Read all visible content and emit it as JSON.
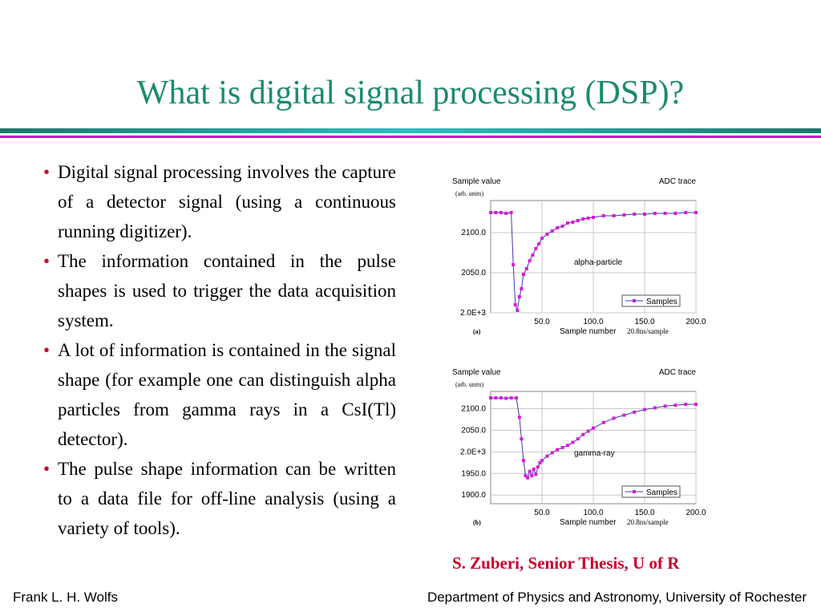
{
  "slide": {
    "title": "What is digital signal processing (DSP)?",
    "bullets": [
      "Digital signal processing involves the capture of a detector signal (using a continuous running digitizer).",
      "The information contained in the pulse shapes is used to trigger the data acquisition system.",
      "A lot of information is contained in the signal shape (for example one can distinguish alpha particles from gamma rays in a CsI(Tl) detector).",
      "The pulse shape information can be written to a data file for off-line analysis (using a variety of tools)."
    ],
    "bullet_symbol": "•",
    "citation": "S. Zuberi, Senior Thesis, U of R",
    "footer_left": "Frank L. H. Wolfs",
    "footer_right": "Department of Physics and Astronomy, University of Rochester",
    "colors": {
      "title": "#1a8b6e",
      "accent_red": "#c8002a",
      "bar_teal": "#1aa5a5",
      "bar_magenta": "#cc00cc",
      "trace": "#d81bd8"
    }
  },
  "chart_data": [
    {
      "type": "line",
      "title": "ADC trace",
      "ylabel": "Sample value",
      "ylabel_units": "(arb. units)",
      "xlabel": "Sample number",
      "x_units": "20.8ns/sample",
      "annotation": "alpha-particle",
      "panel_label": "(a)",
      "legend": "Samples",
      "legend_position": "bottom-right",
      "grid": true,
      "xlim": [
        0,
        200
      ],
      "ylim": [
        2000,
        2140
      ],
      "xticks": [
        "50.0",
        "100.0",
        "150.0",
        "200.0"
      ],
      "yticks": [
        {
          "value": 2000,
          "label": "2.0E+3"
        },
        {
          "value": 2050,
          "label": "2050.0"
        },
        {
          "value": 2100,
          "label": "2100.0"
        }
      ],
      "series": [
        {
          "name": "Samples",
          "x": [
            0,
            5,
            10,
            15,
            20,
            22,
            24,
            26,
            28,
            30,
            32,
            35,
            38,
            41,
            44,
            47,
            50,
            55,
            60,
            65,
            70,
            75,
            80,
            85,
            90,
            95,
            100,
            110,
            120,
            130,
            140,
            150,
            160,
            170,
            180,
            190,
            200
          ],
          "y": [
            2125,
            2125,
            2125,
            2124,
            2125,
            2060,
            2010,
            2003,
            2020,
            2030,
            2048,
            2055,
            2065,
            2072,
            2080,
            2086,
            2093,
            2098,
            2102,
            2106,
            2108,
            2112,
            2113,
            2115,
            2117,
            2118,
            2119,
            2121,
            2121,
            2122,
            2123,
            2123,
            2124,
            2124,
            2124,
            2125,
            2125
          ]
        }
      ]
    },
    {
      "type": "line",
      "title": "ADC trace",
      "ylabel": "Sample value",
      "ylabel_units": "(arb. units)",
      "xlabel": "Sample number",
      "x_units": "20.8ns/sample",
      "annotation": "gamma-ray",
      "panel_label": "(b)",
      "legend": "Samples",
      "legend_position": "bottom-right",
      "grid": true,
      "xlim": [
        0,
        200
      ],
      "ylim": [
        1880,
        2140
      ],
      "xticks": [
        "50.0",
        "100.0",
        "150.0",
        "200.0"
      ],
      "yticks": [
        {
          "value": 1900,
          "label": "1900.0"
        },
        {
          "value": 1950,
          "label": "1950.0"
        },
        {
          "value": 2000,
          "label": "2.0E+3"
        },
        {
          "value": 2050,
          "label": "2050.0"
        },
        {
          "value": 2100,
          "label": "2100.0"
        }
      ],
      "series": [
        {
          "name": "Samples",
          "x": [
            0,
            5,
            10,
            15,
            20,
            25,
            28,
            30,
            32,
            34,
            36,
            38,
            40,
            42,
            44,
            46,
            48,
            50,
            55,
            60,
            65,
            70,
            75,
            80,
            85,
            90,
            95,
            100,
            110,
            120,
            130,
            140,
            150,
            160,
            170,
            180,
            190,
            200
          ],
          "y": [
            2125,
            2125,
            2125,
            2124,
            2125,
            2125,
            2080,
            2030,
            1980,
            1945,
            1940,
            1955,
            1945,
            1960,
            1948,
            1965,
            1975,
            1980,
            1990,
            1998,
            2005,
            2010,
            2015,
            2022,
            2030,
            2040,
            2048,
            2055,
            2068,
            2078,
            2085,
            2092,
            2098,
            2102,
            2106,
            2108,
            2110,
            2110
          ]
        }
      ]
    }
  ]
}
